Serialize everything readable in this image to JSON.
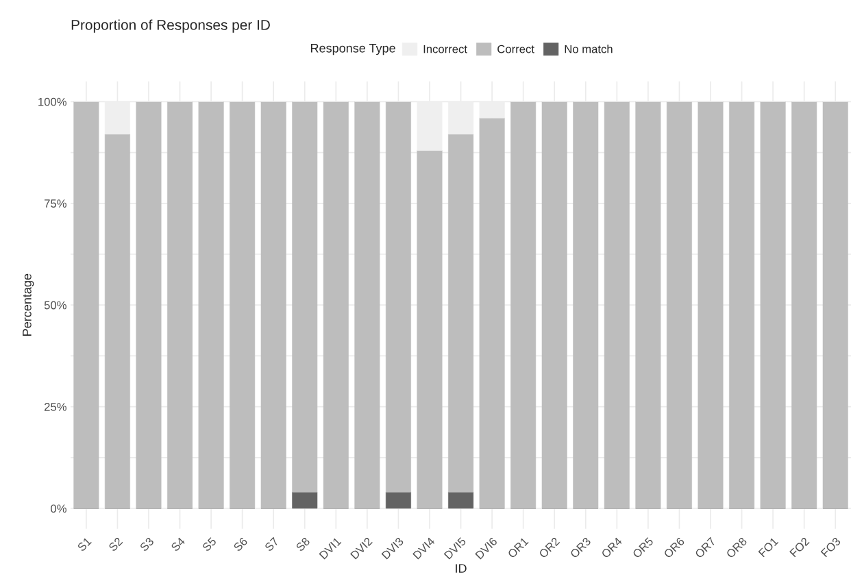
{
  "chart_data": {
    "type": "bar",
    "title": "Proportion of Responses per ID",
    "xlabel": "ID",
    "ylabel": "Percentage",
    "legend_title": "Response Type",
    "categories": [
      "S1",
      "S2",
      "S3",
      "S4",
      "S5",
      "S6",
      "S7",
      "S8",
      "DVI1",
      "DVI2",
      "DVI3",
      "DVI4",
      "DVI5",
      "DVI6",
      "OR1",
      "OR2",
      "OR3",
      "OR4",
      "OR5",
      "OR6",
      "OR7",
      "OR8",
      "FO1",
      "FO2",
      "FO3"
    ],
    "stacked": true,
    "series": [
      {
        "name": "No match",
        "color": "#636363",
        "values": [
          0,
          0,
          0,
          0,
          0,
          0,
          0,
          4,
          0,
          0,
          4,
          0,
          4,
          0,
          0,
          0,
          0,
          0,
          0,
          0,
          0,
          0,
          0,
          0,
          0
        ]
      },
      {
        "name": "Correct",
        "color": "#bdbdbd",
        "values": [
          100,
          92,
          100,
          100,
          100,
          100,
          100,
          96,
          100,
          100,
          96,
          88,
          88,
          96,
          100,
          100,
          100,
          100,
          100,
          100,
          100,
          100,
          100,
          100,
          100
        ]
      },
      {
        "name": "Incorrect",
        "color": "#efefef",
        "values": [
          0,
          8,
          0,
          0,
          0,
          0,
          0,
          0,
          0,
          0,
          0,
          12,
          8,
          4,
          0,
          0,
          0,
          0,
          0,
          0,
          0,
          0,
          0,
          0,
          0
        ]
      }
    ],
    "ylim": [
      -5,
      105
    ],
    "yticks": [
      {
        "value": 0,
        "label": "0%"
      },
      {
        "value": 12.5,
        "label": null
      },
      {
        "value": 25,
        "label": "25%"
      },
      {
        "value": 37.5,
        "label": null
      },
      {
        "value": 50,
        "label": "50%"
      },
      {
        "value": 62.5,
        "label": null
      },
      {
        "value": 75,
        "label": "75%"
      },
      {
        "value": 87.5,
        "label": null
      },
      {
        "value": 100,
        "label": "100%"
      }
    ],
    "grid": true,
    "legend": "top"
  }
}
